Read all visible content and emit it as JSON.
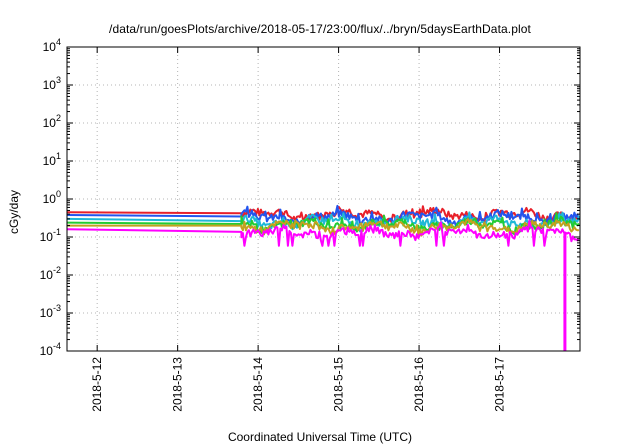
{
  "chart_data": {
    "type": "line",
    "title": "/data/run/goesPlots/archive/2018-05-17/23:00/flux/../bryn/5daysEarthData.plot",
    "xlabel": "Coordinated Universal Time (UTC)",
    "ylabel": "cGy/day",
    "yscale": "log",
    "ylim": [
      0.0001,
      10000
    ],
    "xlim": [
      "2018-05-11 15:00",
      "2018-05-18 00:00"
    ],
    "y_ticks": [
      {
        "base": "10",
        "exp": "-4",
        "value": 0.0001
      },
      {
        "base": "10",
        "exp": "-3",
        "value": 0.001
      },
      {
        "base": "10",
        "exp": "-2",
        "value": 0.01
      },
      {
        "base": "10",
        "exp": "-1",
        "value": 0.1
      },
      {
        "base": "10",
        "exp": "0",
        "value": 1
      },
      {
        "base": "10",
        "exp": "1",
        "value": 10
      },
      {
        "base": "10",
        "exp": "2",
        "value": 100
      },
      {
        "base": "10",
        "exp": "3",
        "value": 1000
      },
      {
        "base": "10",
        "exp": "4",
        "value": 10000
      }
    ],
    "x_ticks": [
      "2018-5-12",
      "2018-5-13",
      "2018-5-14",
      "2018-5-15",
      "2018-5-16",
      "2018-5-17"
    ],
    "grid": true,
    "legend": "none",
    "data_start": "2018-05-13 19:00",
    "series": [
      {
        "color": "#e8202a",
        "level": 0.4,
        "early": 0.45,
        "spike": 0.62
      },
      {
        "color": "#2255ee",
        "level": 0.33,
        "early": 0.38,
        "spike": 0.55
      },
      {
        "color": "#1fb8d8",
        "level": 0.25,
        "early": 0.3,
        "spike": 0.4
      },
      {
        "color": "#22cc33",
        "level": 0.21,
        "early": 0.24,
        "spike": 0.3
      },
      {
        "color": "#c4a020",
        "level": 0.19,
        "early": 0.2,
        "spike": 0.25
      },
      {
        "color": "#ff00ff",
        "level": 0.13,
        "early": 0.16,
        "spike": 0.2,
        "dropout": {
          "time": "2018-05-17 19:30",
          "min": 0.0001
        }
      }
    ]
  }
}
